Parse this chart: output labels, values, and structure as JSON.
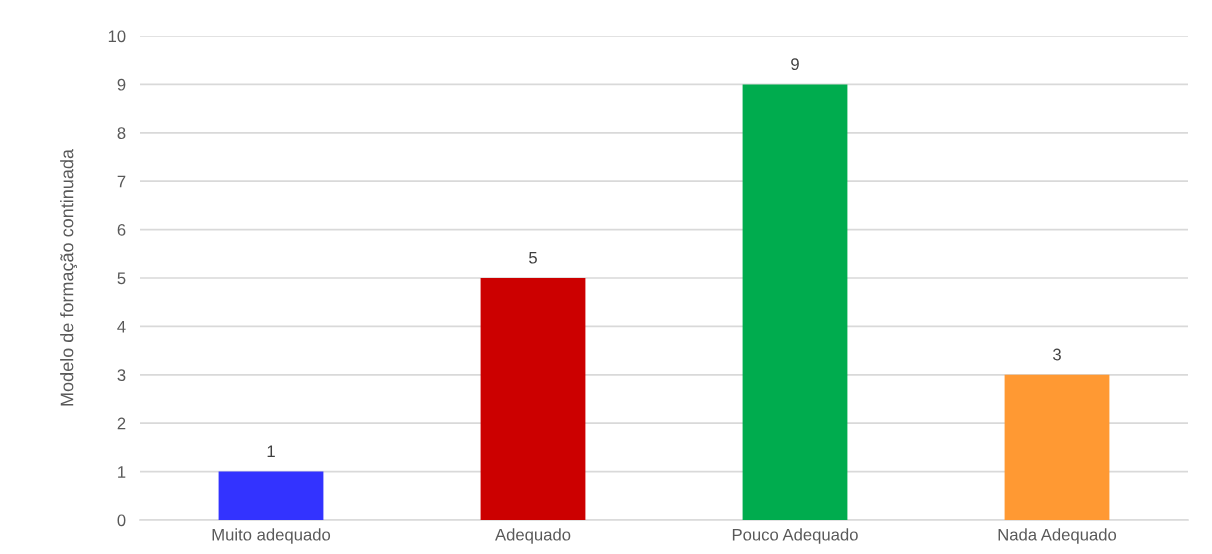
{
  "chart_data": {
    "type": "bar",
    "ylabel": "Modelo de formação continuada",
    "categories": [
      "Muito adequado",
      "Adequado",
      "Pouco Adequado",
      "Nada Adequado"
    ],
    "values": [
      1,
      5,
      9,
      3
    ],
    "colors": [
      "#3333ff",
      "#cc0000",
      "#00ac4e",
      "#ff9933"
    ],
    "ylim": [
      0,
      10
    ],
    "yticks": [
      0,
      1,
      2,
      3,
      4,
      5,
      6,
      7,
      8,
      9,
      10
    ],
    "grid": "y",
    "legend": false,
    "data_labels": true
  }
}
